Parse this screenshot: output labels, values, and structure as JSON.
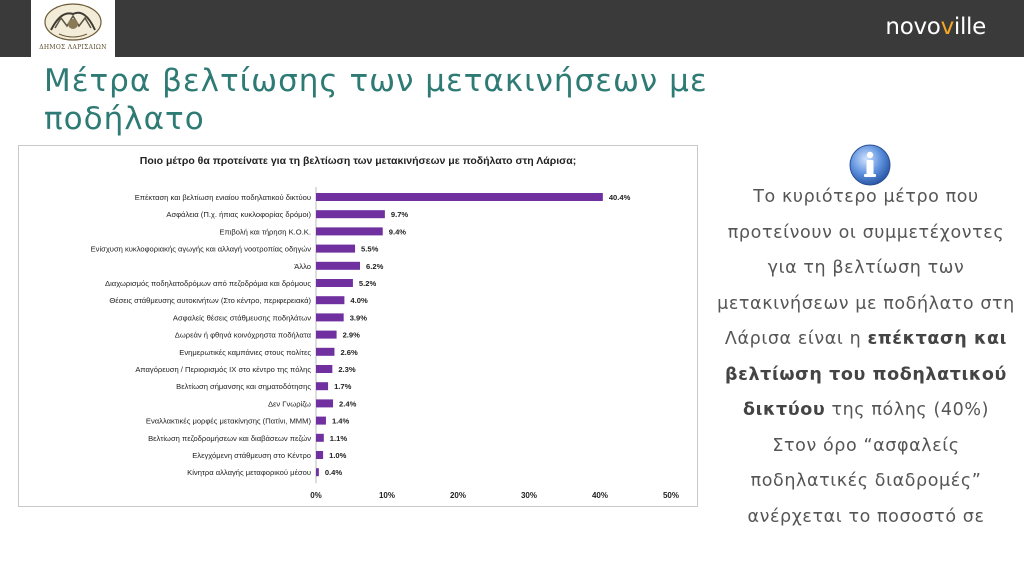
{
  "header": {
    "logo_text": "ΔΗΜΟΣ ΛΑΡΙΣΑΙΩΝ",
    "brand_prefix": "novo",
    "brand_highlight": "v",
    "brand_suffix": "ille"
  },
  "slide": {
    "title": "Μέτρα βελτίωσης των μετακινήσεων με ποδήλατο"
  },
  "chart_data": {
    "type": "bar",
    "orientation": "horizontal",
    "title": "Ποιο μέτρο θα προτείνατε για τη βελτίωση των μετακινήσεων με ποδήλατο στη Λάρισα;",
    "xlabel": "",
    "ylabel": "",
    "xlim": [
      0,
      50
    ],
    "grid": false,
    "bar_color": "#7030a0",
    "ticks": [
      "0%",
      "10%",
      "20%",
      "30%",
      "40%",
      "50%"
    ],
    "categories": [
      "Επέκταση και βελτίωση ενιαίου ποδηλατικού δικτύου",
      "Ασφάλεια (Π.χ. ήπιας κυκλοφορίας δρόμοι)",
      "Επιβολή και τήρηση Κ.Ο.Κ.",
      "Ενίσχυση κυκλοφοριακής αγωγής και αλλαγή νοοτροπίας οδηγών",
      "Άλλο",
      "Διαχωρισμός ποδηλατοδρόμων από πεζοδρόμια και δρόμους",
      "Θέσεις στάθμευσης αυτοκινήτων (Στο κέντρο, περιφερειακά)",
      "Ασφαλείς θέσεις στάθμευσης ποδηλάτων",
      "Δωρεάν ή φθηνά κοινόχρηστα ποδήλατα",
      "Ενημερωτικές καμπάνιες στους πολίτες",
      "Απαγόρευση / Περιορισμός ΙΧ στο κέντρο της πόλης",
      "Βελτίωση σήμανσης και σηματοδότησης",
      "Δεν Γνωρίζω",
      "Εναλλακτικές μορφές μετακίνησης (Πατίνι, ΜΜΜ)",
      "Βελτίωση πεζοδρομήσεων και διαβάσεων πεζών",
      "Ελεγχόμενη στάθμευση στο Κέντρο",
      "Κίνητρα αλλαγής μεταφορικού μέσου"
    ],
    "values": [
      40.4,
      9.7,
      9.4,
      5.5,
      6.2,
      5.2,
      4.0,
      3.9,
      2.9,
      2.6,
      2.3,
      1.7,
      2.4,
      1.4,
      1.1,
      1.0,
      0.4
    ],
    "value_labels": [
      "40.4%",
      "9.7%",
      "9.4%",
      "5.5%",
      "6.2%",
      "5.2%",
      "4.0%",
      "3.9%",
      "2.9%",
      "2.6%",
      "2.3%",
      "1.7%",
      "2.4%",
      "1.4%",
      "1.1%",
      "1.0%",
      "0.4%"
    ]
  },
  "side": {
    "info_icon": "info-icon",
    "line1": "Το κυριότερο μέτρο που προτείνουν οι συμμετέχοντες για τη βελτίωση των μετακινήσεων με ποδήλατο στη Λάρισα είναι η",
    "bold": "επέκταση και βελτίωση του ποδηλατικού δικτύου",
    "line2": "της πόλης (40%)",
    "line3": "Στον όρο “ασφαλείς ποδηλατικές διαδρομές” ανέρχεται το ποσοστό σε"
  }
}
